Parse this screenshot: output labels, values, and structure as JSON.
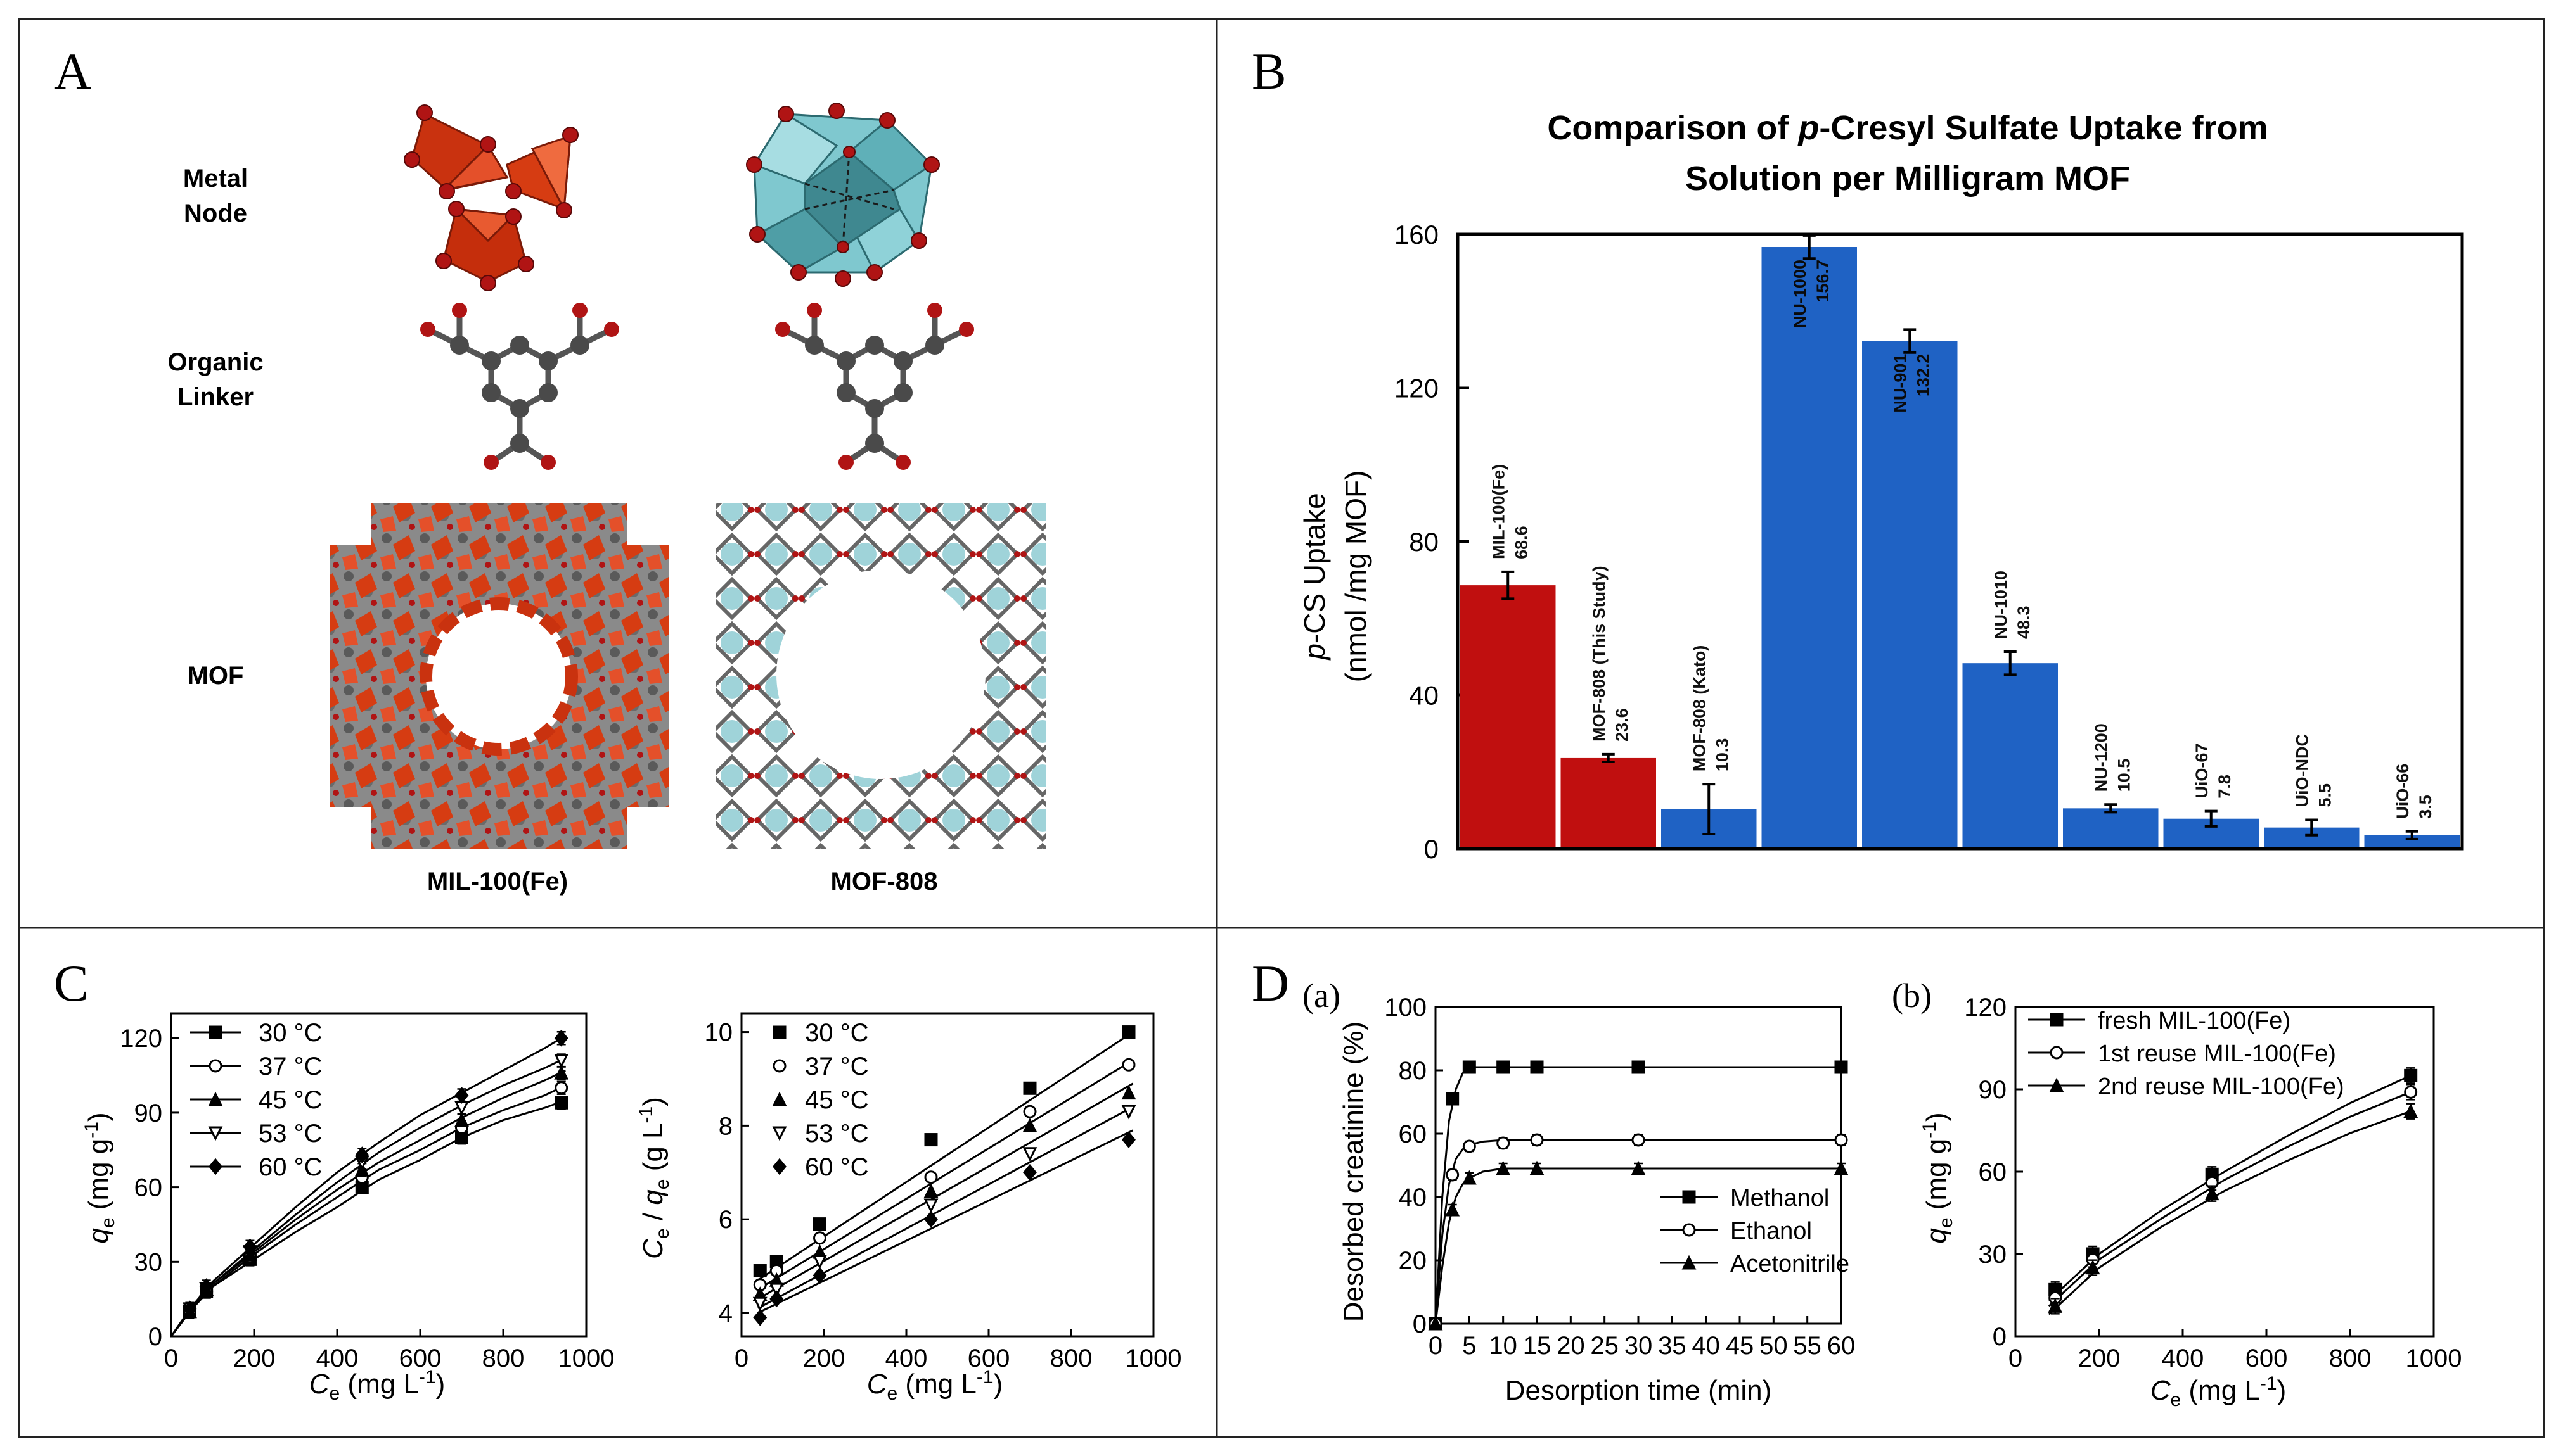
{
  "panel_letters": {
    "a": "A",
    "b": "B",
    "c": "C",
    "d": "D"
  },
  "panel_a": {
    "row_labels": {
      "metal_l1": "Metal",
      "metal_l2": "Node",
      "linker_l1": "Organic",
      "linker_l2": "Linker",
      "mof": "MOF"
    },
    "col_labels": {
      "left": "MIL-100(Fe)",
      "right": "MOF-808"
    },
    "colors": {
      "fe": "#c9320f",
      "zr": "#7fc8cf",
      "oxygen": "#b01414",
      "carbon": "#4a4a4a"
    }
  },
  "chart_data": [
    {
      "type": "bar",
      "title_line1_prefix": "Comparison of ",
      "title_line1_italic": "p",
      "title_line1_suffix": "-Cresyl Sulfate Uptake from",
      "title_line2": "Solution per Milligram MOF",
      "ylabel_line1_italic": "p",
      "ylabel_line1_rest": "-CS Uptake",
      "ylabel_line2": "(nmol /mg MOF)",
      "ylim": [
        0,
        160
      ],
      "yticks": [
        "0",
        "40",
        "80",
        "120",
        "160"
      ],
      "colors": {
        "red": "#c00f0f",
        "blue": "#1f62c4"
      },
      "bars": [
        {
          "name": "MIL-100(Fe)",
          "label": "68.6",
          "value": 68.6,
          "err": 3.5,
          "color": "red"
        },
        {
          "name": "MOF-808 (This Study)",
          "label": "23.6",
          "value": 23.6,
          "err": 1.0,
          "color": "red"
        },
        {
          "name": "MOF-808 (Kato)",
          "label": "10.3",
          "value": 10.3,
          "err": 6.5,
          "color": "blue"
        },
        {
          "name": "NU-1000",
          "label": "156.7",
          "value": 156.7,
          "err": 3.0,
          "color": "blue"
        },
        {
          "name": "NU-901",
          "label": "132.2",
          "value": 132.2,
          "err": 3.0,
          "color": "blue"
        },
        {
          "name": "NU-1010",
          "label": "48.3",
          "value": 48.3,
          "err": 3.0,
          "color": "blue"
        },
        {
          "name": "NU-1200",
          "label": "10.5",
          "value": 10.5,
          "err": 1.0,
          "color": "blue"
        },
        {
          "name": "UiO-67",
          "label": "7.8",
          "value": 7.8,
          "err": 2.0,
          "color": "blue"
        },
        {
          "name": "UiO-NDC",
          "label": "5.5",
          "value": 5.5,
          "err": 2.0,
          "color": "blue"
        },
        {
          "name": "UiO-66",
          "label": "3.5",
          "value": 3.5,
          "err": 1.0,
          "color": "blue"
        }
      ]
    },
    {
      "type": "scatter",
      "xlabel_sym": "C",
      "xlabel_sub": "e",
      "xlabel_unit": " (mg L",
      "xlabel_sup": "-1",
      "xlabel_close": ")",
      "ylabel_sym": "q",
      "ylabel_sub": "e",
      "ylabel_unit": " (mg g",
      "ylabel_sup": "-1",
      "ylabel_close": ")",
      "xlim": [
        0,
        1000
      ],
      "ylim": [
        0,
        130
      ],
      "xticks": [
        0,
        200,
        400,
        600,
        800,
        1000
      ],
      "yticks": [
        0,
        30,
        60,
        90,
        120
      ],
      "series": [
        {
          "name": "30 °C",
          "marker": "square-filled",
          "x": [
            45,
            85,
            190,
            460,
            700,
            940
          ],
          "y": [
            10,
            18,
            31,
            60,
            80,
            94
          ],
          "curve": [
            [
              0,
              0
            ],
            [
              50,
              11
            ],
            [
              100,
              20
            ],
            [
              200,
              31
            ],
            [
              300,
              42
            ],
            [
              400,
              52
            ],
            [
              500,
              63
            ],
            [
              600,
              71
            ],
            [
              700,
              80
            ],
            [
              800,
              87
            ],
            [
              900,
              92
            ],
            [
              950,
              95
            ]
          ]
        },
        {
          "name": "37 °C",
          "marker": "circle-open",
          "x": [
            45,
            85,
            190,
            460,
            700,
            940
          ],
          "y": [
            10,
            18,
            32,
            64,
            84,
            100
          ],
          "curve": [
            [
              0,
              0
            ],
            [
              50,
              11
            ],
            [
              100,
              20
            ],
            [
              200,
              33
            ],
            [
              300,
              45
            ],
            [
              400,
              56
            ],
            [
              500,
              67
            ],
            [
              600,
              75
            ],
            [
              700,
              84
            ],
            [
              800,
              91
            ],
            [
              900,
              97
            ],
            [
              950,
              101
            ]
          ]
        },
        {
          "name": "45 °C",
          "marker": "triangle-filled",
          "x": [
            45,
            85,
            190,
            460,
            700,
            940
          ],
          "y": [
            10,
            19,
            33,
            67,
            87,
            106
          ],
          "curve": [
            [
              0,
              0
            ],
            [
              50,
              11
            ],
            [
              100,
              21
            ],
            [
              200,
              34
            ],
            [
              300,
              47
            ],
            [
              400,
              59
            ],
            [
              500,
              70
            ],
            [
              600,
              79
            ],
            [
              700,
              88
            ],
            [
              800,
              96
            ],
            [
              900,
              103
            ],
            [
              950,
              107
            ]
          ]
        },
        {
          "name": "53 °C",
          "marker": "triangle-down-open",
          "x": [
            45,
            85,
            190,
            460,
            700,
            940
          ],
          "y": [
            11,
            19,
            34,
            70,
            92,
            111
          ],
          "curve": [
            [
              0,
              0
            ],
            [
              50,
              12
            ],
            [
              100,
              21
            ],
            [
              200,
              35
            ],
            [
              300,
              49
            ],
            [
              400,
              62
            ],
            [
              500,
              74
            ],
            [
              600,
              84
            ],
            [
              700,
              93
            ],
            [
              800,
              101
            ],
            [
              900,
              108
            ],
            [
              950,
              112
            ]
          ]
        },
        {
          "name": "60 °C",
          "marker": "diamond-filled",
          "x": [
            45,
            85,
            190,
            460,
            700,
            940
          ],
          "y": [
            11,
            20,
            36,
            73,
            97,
            120
          ],
          "curve": [
            [
              0,
              0
            ],
            [
              50,
              12
            ],
            [
              100,
              22
            ],
            [
              200,
              37
            ],
            [
              300,
              52
            ],
            [
              400,
              66
            ],
            [
              500,
              78
            ],
            [
              600,
              89
            ],
            [
              700,
              98
            ],
            [
              800,
              107
            ],
            [
              900,
              116
            ],
            [
              950,
              121
            ]
          ]
        }
      ]
    },
    {
      "type": "scatter",
      "xlabel_sym": "C",
      "xlabel_sub": "e",
      "xlabel_unit": " (mg L",
      "xlabel_sup": "-1",
      "xlabel_close": ")",
      "ylabel_c": "C",
      "ylabel_c_sub": "e",
      "ylabel_mid": " / ",
      "ylabel_q": "q",
      "ylabel_q_sub": "e",
      "ylabel_unit": " (g L",
      "ylabel_sup": "-1",
      "ylabel_close": ")",
      "xlim": [
        0,
        1000
      ],
      "ylim": [
        3.5,
        10.4
      ],
      "xticks": [
        0,
        200,
        400,
        600,
        800,
        1000
      ],
      "yticks": [
        4,
        6,
        8,
        10
      ],
      "series": [
        {
          "name": "30 °C",
          "marker": "square-filled",
          "x": [
            45,
            85,
            190,
            460,
            700,
            940
          ],
          "y": [
            4.9,
            5.1,
            5.9,
            7.7,
            8.8,
            10.0
          ],
          "line": [
            [
              40,
              4.7
            ],
            [
              950,
              10.0
            ]
          ]
        },
        {
          "name": "37 °C",
          "marker": "circle-open",
          "x": [
            45,
            85,
            190,
            460,
            700,
            940
          ],
          "y": [
            4.6,
            4.9,
            5.6,
            6.9,
            8.3,
            9.3
          ],
          "line": [
            [
              40,
              4.5
            ],
            [
              950,
              9.4
            ]
          ]
        },
        {
          "name": "45 °C",
          "marker": "triangle-filled",
          "x": [
            45,
            85,
            190,
            460,
            700,
            940
          ],
          "y": [
            4.4,
            4.7,
            5.3,
            6.6,
            8.0,
            8.7
          ],
          "line": [
            [
              40,
              4.3
            ],
            [
              950,
              8.9
            ]
          ]
        },
        {
          "name": "53 °C",
          "marker": "triangle-down-open",
          "x": [
            45,
            85,
            190,
            460,
            700,
            940
          ],
          "y": [
            4.2,
            4.5,
            5.1,
            6.3,
            7.4,
            8.3
          ],
          "line": [
            [
              40,
              4.1
            ],
            [
              950,
              8.4
            ]
          ]
        },
        {
          "name": "60 °C",
          "marker": "diamond-filled",
          "x": [
            45,
            85,
            190,
            460,
            700,
            940
          ],
          "y": [
            3.9,
            4.3,
            4.8,
            6.0,
            7.0,
            7.7
          ],
          "line": [
            [
              40,
              4.0
            ],
            [
              950,
              7.9
            ]
          ]
        }
      ]
    },
    {
      "type": "line",
      "sublabel": "(a)",
      "xlabel": "Desorption time (min)",
      "ylabel": "Desorbed creatinine (%)",
      "xlim": [
        0,
        60
      ],
      "ylim": [
        0,
        100
      ],
      "xticks": [
        0,
        5,
        10,
        15,
        20,
        25,
        30,
        35,
        40,
        45,
        50,
        55,
        60
      ],
      "yticks": [
        0,
        20,
        40,
        60,
        80,
        100
      ],
      "series": [
        {
          "name": "Methanol",
          "marker": "square-filled",
          "x": [
            0,
            2.5,
            5,
            10,
            15,
            30,
            60
          ],
          "y": [
            0,
            71,
            81,
            81,
            81,
            81,
            81
          ],
          "curve": [
            [
              0,
              0
            ],
            [
              1,
              40
            ],
            [
              2,
              64
            ],
            [
              3,
              74
            ],
            [
              4,
              79
            ],
            [
              5,
              81
            ],
            [
              6,
              81
            ],
            [
              60,
              81
            ]
          ]
        },
        {
          "name": "Ethanol",
          "marker": "circle-open",
          "x": [
            0,
            2.5,
            5,
            10,
            15,
            30,
            60
          ],
          "y": [
            0,
            47,
            56,
            57,
            58,
            58,
            58
          ],
          "curve": [
            [
              0,
              0
            ],
            [
              1,
              28
            ],
            [
              2,
              44
            ],
            [
              3,
              52
            ],
            [
              4,
              55
            ],
            [
              5,
              56.5
            ],
            [
              7,
              57.5
            ],
            [
              10,
              58
            ],
            [
              60,
              58
            ]
          ]
        },
        {
          "name": "Acetonitrile",
          "marker": "triangle-filled",
          "x": [
            0,
            2.5,
            5,
            10,
            15,
            30,
            60
          ],
          "y": [
            0,
            36,
            46,
            49,
            49,
            49,
            49
          ],
          "curve": [
            [
              0,
              0
            ],
            [
              1,
              18
            ],
            [
              2,
              32
            ],
            [
              3,
              40
            ],
            [
              4,
              44
            ],
            [
              5,
              46
            ],
            [
              7,
              48
            ],
            [
              10,
              49
            ],
            [
              60,
              49
            ]
          ]
        }
      ]
    },
    {
      "type": "scatter",
      "sublabel": "(b)",
      "xlabel_sym": "C",
      "xlabel_sub": "e",
      "xlabel_unit": " (mg L",
      "xlabel_sup": "-1",
      "xlabel_close": ")",
      "ylabel_sym": "q",
      "ylabel_sub": "e",
      "ylabel_unit": " (mg g",
      "ylabel_sup": "-1",
      "ylabel_close": ")",
      "xlim": [
        0,
        1000
      ],
      "ylim": [
        0,
        120
      ],
      "xticks": [
        0,
        200,
        400,
        600,
        800,
        1000
      ],
      "yticks": [
        0,
        30,
        60,
        90,
        120
      ],
      "series": [
        {
          "name": "fresh MIL-100(Fe)",
          "marker": "square-filled",
          "x": [
            95,
            185,
            470,
            945
          ],
          "y": [
            17,
            30,
            59,
            95
          ],
          "curve": [
            [
              80,
              13
            ],
            [
              200,
              30
            ],
            [
              350,
              46
            ],
            [
              500,
              60
            ],
            [
              650,
              73
            ],
            [
              800,
              85
            ],
            [
              945,
              95
            ]
          ]
        },
        {
          "name": "1st reuse MIL-100(Fe)",
          "marker": "circle-open",
          "x": [
            95,
            185,
            470,
            945
          ],
          "y": [
            14,
            28,
            56,
            89
          ],
          "curve": [
            [
              80,
              11
            ],
            [
              200,
              28
            ],
            [
              350,
              43
            ],
            [
              500,
              57
            ],
            [
              650,
              69
            ],
            [
              800,
              80
            ],
            [
              945,
              89
            ]
          ]
        },
        {
          "name": "2nd reuse MIL-100(Fe)",
          "marker": "triangle-filled",
          "x": [
            95,
            185,
            470,
            945
          ],
          "y": [
            11,
            25,
            52,
            82
          ],
          "curve": [
            [
              80,
              8
            ],
            [
              200,
              25
            ],
            [
              350,
              40
            ],
            [
              500,
              53
            ],
            [
              650,
              64
            ],
            [
              800,
              74
            ],
            [
              945,
              82
            ]
          ]
        }
      ]
    }
  ]
}
